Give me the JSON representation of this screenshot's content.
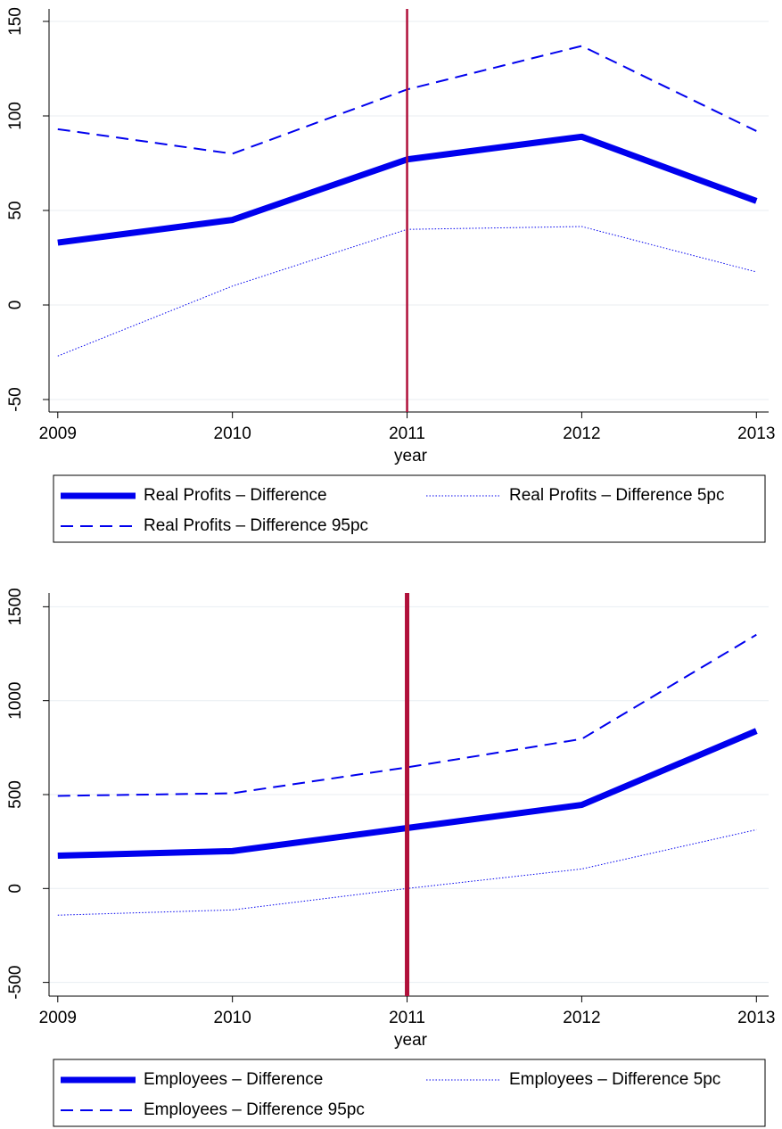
{
  "chart_data": [
    {
      "type": "line",
      "xlabel": "year",
      "x": [
        2009,
        2010,
        2011,
        2012,
        2013
      ],
      "xlim": [
        2008.95,
        2013.07
      ],
      "xticks": [
        2009,
        2010,
        2011,
        2012,
        2013
      ],
      "ylim": [
        -56.6,
        156.6
      ],
      "yticks": [
        -50,
        0,
        50,
        100,
        150
      ],
      "grid": true,
      "xline": 2011,
      "xline_color": "#b0103a",
      "xline_width": 2.5,
      "legend": "bottom",
      "series": [
        {
          "name": "Real Profits – Difference",
          "color": "#0000ee",
          "style": "solid",
          "width": 7,
          "values": [
            33,
            45,
            77,
            89,
            55
          ]
        },
        {
          "name": "Real Profits – Difference 5pc",
          "color": "#0000ee",
          "style": "dot",
          "width": 1,
          "values": [
            -27,
            10,
            40,
            41.5,
            17.5
          ]
        },
        {
          "name": "Real Profits – Difference 95pc",
          "color": "#0000ee",
          "style": "dash",
          "width": 2,
          "values": [
            93,
            80,
            114,
            137,
            92
          ]
        }
      ]
    },
    {
      "type": "line",
      "xlabel": "year",
      "x": [
        2009,
        2010,
        2011,
        2012,
        2013
      ],
      "xlim": [
        2008.95,
        2013.07
      ],
      "xticks": [
        2009,
        2010,
        2011,
        2012,
        2013
      ],
      "ylim": [
        -573,
        1573
      ],
      "yticks": [
        -500,
        0,
        500,
        1000,
        1500
      ],
      "grid": true,
      "xline": 2011,
      "xline_color": "#b0103a",
      "xline_width": 5,
      "legend": "bottom",
      "series": [
        {
          "name": "Employees – Difference",
          "color": "#0000ee",
          "style": "solid",
          "width": 7,
          "values": [
            175,
            199,
            322,
            445,
            839
          ]
        },
        {
          "name": "Employees – Difference 5pc",
          "color": "#0000ee",
          "style": "dot",
          "width": 1,
          "values": [
            -142,
            -114,
            0,
            104,
            313
          ]
        },
        {
          "name": "Employees – Difference 95pc",
          "color": "#0000ee",
          "style": "dash",
          "width": 2,
          "values": [
            493,
            507,
            645,
            796,
            1351
          ]
        }
      ]
    }
  ]
}
